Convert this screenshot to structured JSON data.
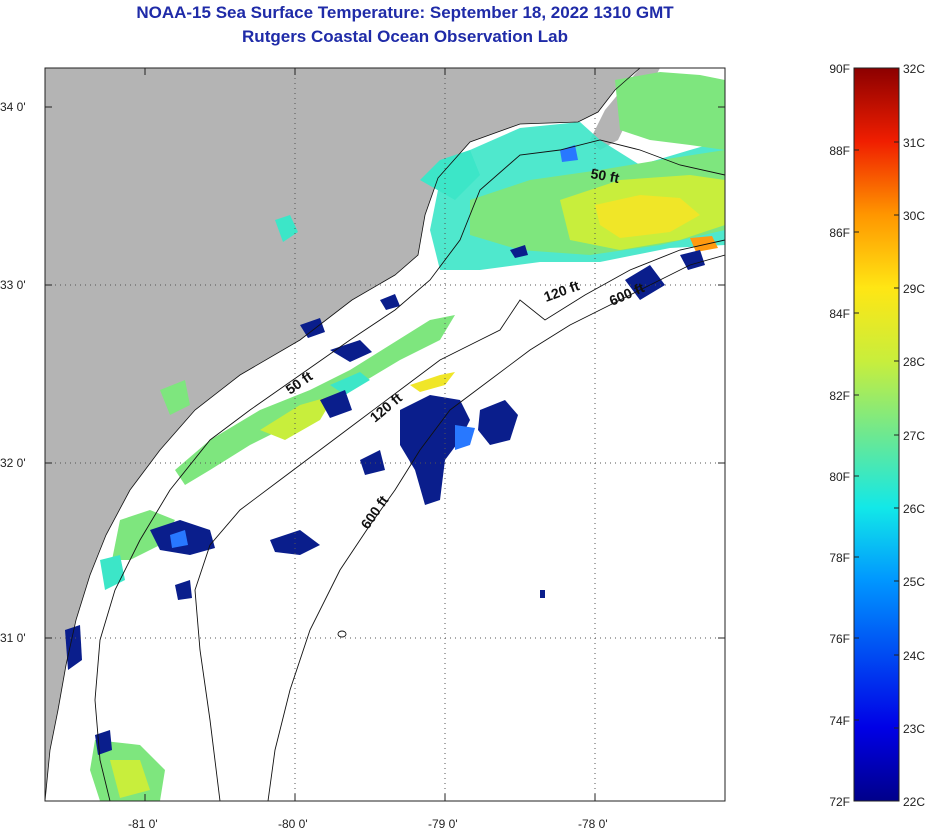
{
  "title": {
    "line1": "NOAA-15 Sea Surface Temperature:  September 18, 2022 1310 GMT",
    "line2": "Rutgers Coastal Ocean Observation Lab"
  },
  "map": {
    "lat_labels": [
      "34 0'",
      "33 0'",
      "32 0'",
      "31 0'"
    ],
    "lon_labels": [
      "-81 0'",
      "-80 0'",
      "-79 0'",
      "-78 0'"
    ],
    "contour_labels": [
      "50 ft",
      "120 ft",
      "600 ft",
      "50 ft",
      "120 ft",
      "600 ft"
    ],
    "colors": {
      "land": "#b4b4b4",
      "cloud": "#ffffff",
      "cold": "#0a1e8c",
      "warm": "#f0e628",
      "mid": "#7ee67e"
    }
  },
  "colorbar": {
    "fahrenheit": [
      "90F",
      "88F",
      "86F",
      "84F",
      "82F",
      "80F",
      "78F",
      "76F",
      "74F",
      "72F"
    ],
    "celsius": [
      "32C",
      "31C",
      "30C",
      "29C",
      "28C",
      "27C",
      "26C",
      "25C",
      "24C",
      "23C",
      "22C"
    ]
  }
}
